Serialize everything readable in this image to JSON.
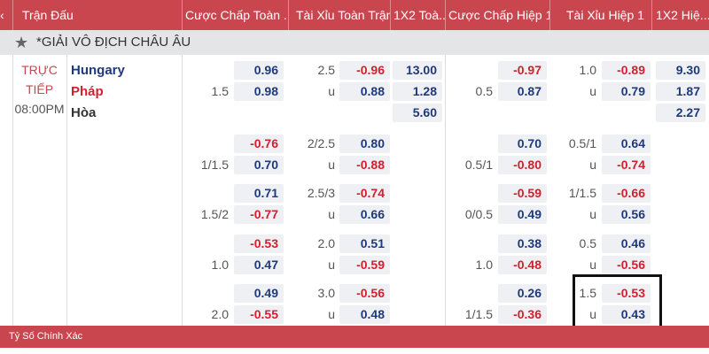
{
  "header": {
    "columns": [
      "Trận Đấu",
      "Cược Chấp Toàn ...",
      "Tài Xỉu Toàn Trận",
      "1X2 Toà...",
      "Cược Chấp Hiệp 1",
      "Tài Xỉu Hiệp 1",
      "1X2 Hiệ..."
    ]
  },
  "league": {
    "name": "*GIẢI VÔ ĐỊCH CHÂU ÂU"
  },
  "match": {
    "status_line1": "TRỰC",
    "status_line2": "TIẾP",
    "time": "08:00PM",
    "home": "Hungary",
    "away": "Pháp",
    "draw": "Hòa"
  },
  "groups": [
    {
      "hcap": [
        [
          "",
          "0.96"
        ],
        [
          "1.5",
          "0.98"
        ]
      ],
      "ou": [
        [
          "2.5",
          "-0.96"
        ],
        [
          "u",
          "0.88"
        ]
      ],
      "x12": [
        "13.00",
        "1.28",
        "5.60"
      ],
      "h1hcap": [
        [
          "",
          "-0.97"
        ],
        [
          "0.5",
          "0.87"
        ]
      ],
      "h1ou": [
        [
          "1.0",
          "-0.89"
        ],
        [
          "u",
          "0.79"
        ]
      ],
      "h1x12": [
        "9.30",
        "1.87",
        "2.27"
      ]
    },
    {
      "hcap": [
        [
          "",
          "-0.76"
        ],
        [
          "1/1.5",
          "0.70"
        ]
      ],
      "ou": [
        [
          "2/2.5",
          "0.80"
        ],
        [
          "u",
          "-0.88"
        ]
      ],
      "x12": [],
      "h1hcap": [
        [
          "",
          "0.70"
        ],
        [
          "0.5/1",
          "-0.80"
        ]
      ],
      "h1ou": [
        [
          "0.5/1",
          "0.64"
        ],
        [
          "u",
          "-0.74"
        ]
      ],
      "h1x12": []
    },
    {
      "hcap": [
        [
          "",
          "0.71"
        ],
        [
          "1.5/2",
          "-0.77"
        ]
      ],
      "ou": [
        [
          "2.5/3",
          "-0.74"
        ],
        [
          "u",
          "0.66"
        ]
      ],
      "x12": [],
      "h1hcap": [
        [
          "",
          "-0.59"
        ],
        [
          "0/0.5",
          "0.49"
        ]
      ],
      "h1ou": [
        [
          "1/1.5",
          "-0.66"
        ],
        [
          "u",
          "0.56"
        ]
      ],
      "h1x12": []
    },
    {
      "hcap": [
        [
          "",
          "-0.53"
        ],
        [
          "1.0",
          "0.47"
        ]
      ],
      "ou": [
        [
          "2.0",
          "0.51"
        ],
        [
          "u",
          "-0.59"
        ]
      ],
      "x12": [],
      "h1hcap": [
        [
          "",
          "0.38"
        ],
        [
          "1.0",
          "-0.48"
        ]
      ],
      "h1ou": [
        [
          "0.5",
          "0.46"
        ],
        [
          "u",
          "-0.56"
        ]
      ],
      "h1x12": []
    },
    {
      "hcap": [
        [
          "",
          "0.49"
        ],
        [
          "2.0",
          "-0.55"
        ]
      ],
      "ou": [
        [
          "3.0",
          "-0.56"
        ],
        [
          "u",
          "0.48"
        ]
      ],
      "x12": [],
      "h1hcap": [
        [
          "",
          "0.26"
        ],
        [
          "1/1.5",
          "-0.36"
        ]
      ],
      "h1ou": [
        [
          "1.5",
          "-0.53"
        ],
        [
          "u",
          "0.43"
        ]
      ],
      "h1x12": []
    }
  ],
  "footer": {
    "title": "Tỷ Số Chính Xác"
  }
}
